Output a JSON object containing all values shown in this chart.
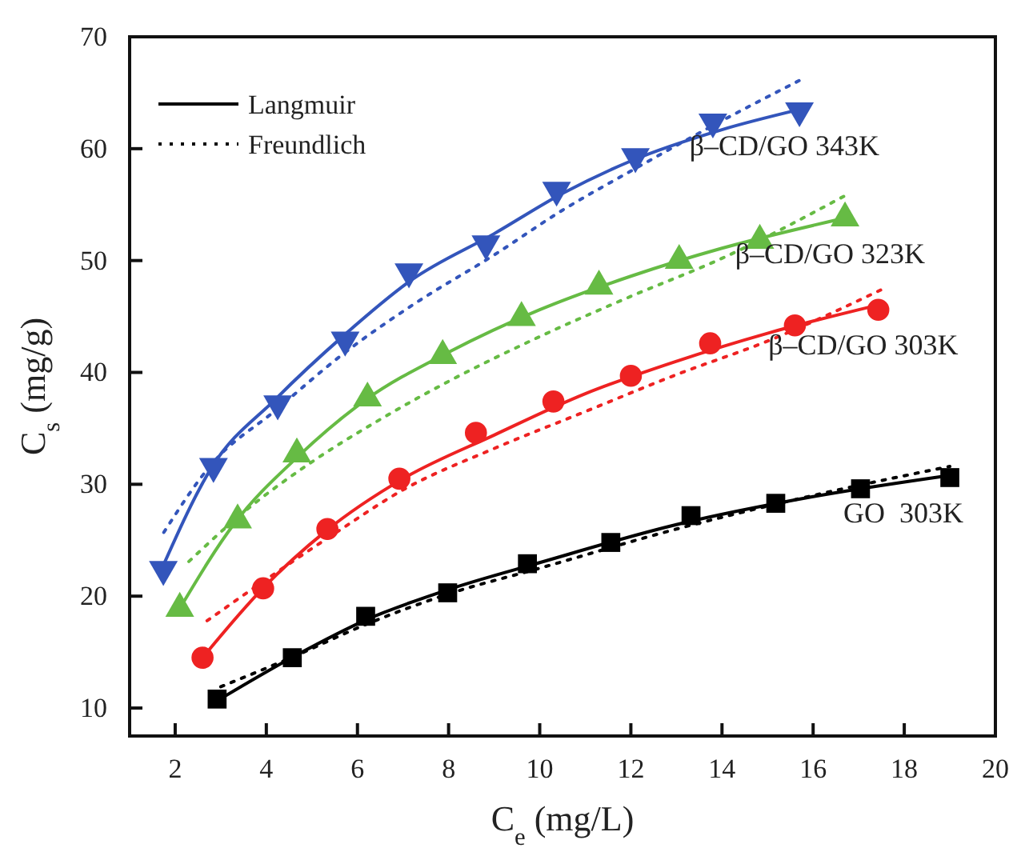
{
  "chart_data": {
    "type": "scatter",
    "xlabel": "C$_{e}$ (mg/L)",
    "ylabel": "C$_{s}$ (mg/g)",
    "xlim": [
      1,
      20
    ],
    "ylim": [
      7.5,
      70
    ],
    "xticks": [
      2,
      4,
      6,
      8,
      10,
      12,
      14,
      16,
      18,
      20
    ],
    "yticks": [
      10,
      20,
      30,
      40,
      50,
      60,
      70
    ],
    "grid": false,
    "legend": "top left",
    "series": [
      {
        "type": "line",
        "name": "Langmuir",
        "color": "#000000",
        "line_style": "solid",
        "marker": "none",
        "x": [
          2.9,
          4.6,
          6.2,
          8,
          10,
          13,
          16,
          19
        ],
        "values": [
          10.6,
          14.6,
          17.9,
          20.6,
          23.0,
          26.4,
          28.9,
          30.8
        ]
      },
      {
        "type": "line",
        "name": "Freundlich",
        "color": "#000000",
        "line_style": "dotted",
        "marker": "none",
        "x": [
          3,
          4.6,
          6.2,
          8,
          10,
          13,
          16,
          19
        ],
        "values": [
          11.9,
          14.6,
          17.5,
          20.2,
          22.5,
          26,
          29,
          31.6
        ]
      },
      {
        "type": "line",
        "color": "#ee2222",
        "line_style": "solid",
        "marker": "none",
        "x": [
          2.6,
          3.9,
          5.3,
          7,
          9,
          11,
          13,
          15,
          17.4
        ],
        "values": [
          14.5,
          20.6,
          25.8,
          30.5,
          34.4,
          38.1,
          41,
          43.5,
          46
        ]
      },
      {
        "type": "line",
        "color": "#ee2222",
        "line_style": "dotted",
        "marker": "none",
        "x": [
          2.7,
          4,
          5.5,
          7,
          9,
          11,
          13,
          15,
          17.5
        ],
        "values": [
          17.8,
          21.5,
          25.6,
          29.5,
          33.2,
          36.5,
          39.8,
          42.8,
          47.4
        ]
      },
      {
        "type": "line",
        "color": "#66bb44",
        "line_style": "solid",
        "marker": "none",
        "x": [
          2.1,
          3.3,
          4.7,
          6.2,
          8,
          10,
          12,
          14,
          16.7
        ],
        "values": [
          18.9,
          26.5,
          32.5,
          37.6,
          41.8,
          45.6,
          48.6,
          51.1,
          53.8
        ]
      },
      {
        "type": "line",
        "color": "#66bb44",
        "line_style": "dotted",
        "marker": "none",
        "x": [
          2.3,
          3.5,
          5,
          6.5,
          8,
          10,
          12,
          14,
          16.7
        ],
        "values": [
          23.1,
          27.5,
          32,
          35.8,
          39.2,
          43.2,
          46.8,
          50.2,
          55.8
        ]
      },
      {
        "type": "line",
        "color": "#3355bb",
        "line_style": "solid",
        "marker": "none",
        "x": [
          1.7,
          2.8,
          4.2,
          5.7,
          7.2,
          9,
          10.5,
          12,
          14,
          15.7
        ],
        "values": [
          22.4,
          31.5,
          37.6,
          43.3,
          48.3,
          52.4,
          56,
          58.9,
          61.7,
          63.5
        ]
      },
      {
        "type": "line",
        "color": "#3355bb",
        "line_style": "dotted",
        "marker": "none",
        "x": [
          1.75,
          2.8,
          4.2,
          5.7,
          7.2,
          9,
          10.5,
          12,
          14,
          15.7
        ],
        "values": [
          25.7,
          31.8,
          36.6,
          41.7,
          46,
          50.5,
          54.5,
          58,
          62.5,
          66.1
        ]
      },
      {
        "name": "GO  303K",
        "color": "#000000",
        "marker": "square",
        "x": [
          2.92,
          4.57,
          6.18,
          7.98,
          9.73,
          11.56,
          13.32,
          15.18,
          17.04,
          19.0
        ],
        "values": [
          10.8,
          14.5,
          18.2,
          20.3,
          22.9,
          24.8,
          27.2,
          28.3,
          29.6,
          30.6
        ]
      },
      {
        "name": "β–CD/GO 303K",
        "color": "#ee2222",
        "marker": "circle",
        "x": [
          2.6,
          3.93,
          5.34,
          6.92,
          8.6,
          10.3,
          12.0,
          13.74,
          15.6,
          17.43
        ],
        "values": [
          14.5,
          20.7,
          26.0,
          30.5,
          34.6,
          37.4,
          39.7,
          42.6,
          44.2,
          45.6
        ]
      },
      {
        "name": "β–CD/GO 323K",
        "color": "#66bb44",
        "marker": "triangle",
        "x": [
          2.1,
          3.37,
          4.67,
          6.22,
          7.87,
          9.6,
          11.3,
          13.06,
          14.83,
          16.7
        ],
        "values": [
          18.9,
          26.8,
          32.7,
          37.7,
          41.5,
          44.9,
          47.7,
          50.0,
          51.8,
          53.8
        ]
      },
      {
        "name": "β–CD/GO 343K",
        "color": "#3355bb",
        "marker": "triangle-down",
        "x": [
          1.74,
          2.84,
          4.25,
          5.73,
          7.13,
          8.82,
          10.37,
          12.1,
          13.8,
          15.7
        ],
        "values": [
          22.4,
          31.6,
          37.2,
          42.9,
          49.0,
          51.5,
          56.3,
          59.3,
          62.4,
          63.4
        ]
      }
    ]
  }
}
